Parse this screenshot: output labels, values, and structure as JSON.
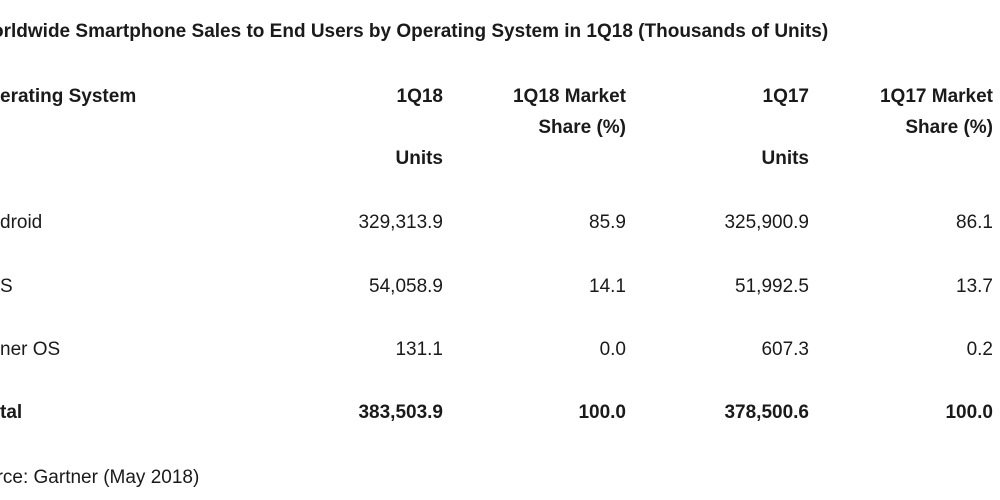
{
  "title": "orldwide Smartphone Sales to End Users by Operating System in 1Q18 (Thousands of Units)",
  "table": {
    "headers": {
      "col1": "erating System",
      "col2_line1": "1Q18",
      "col2_line2": "Units",
      "col3_line1": "1Q18 Market",
      "col3_line2": "Share (%)",
      "col4_line1": "1Q17",
      "col4_line2": "Units",
      "col5_line1": "1Q17 Market",
      "col5_line2": "Share (%)"
    },
    "rows": [
      {
        "os": "droid",
        "units_1q18": "329,313.9",
        "share_1q18": "85.9",
        "units_1q17": "325,900.9",
        "share_1q17": "86.1"
      },
      {
        "os": "S",
        "units_1q18": "54,058.9",
        "share_1q18": "14.1",
        "units_1q17": "51,992.5",
        "share_1q17": "13.7"
      },
      {
        "os": "ner OS",
        "units_1q18": "131.1",
        "share_1q18": "0.0",
        "units_1q17": "607.3",
        "share_1q17": "0.2"
      }
    ],
    "total": {
      "os": "tal",
      "units_1q18": "383,503.9",
      "share_1q18": "100.0",
      "units_1q17": "378,500.6",
      "share_1q17": "100.0"
    }
  },
  "source": "urce: Gartner (May 2018)"
}
